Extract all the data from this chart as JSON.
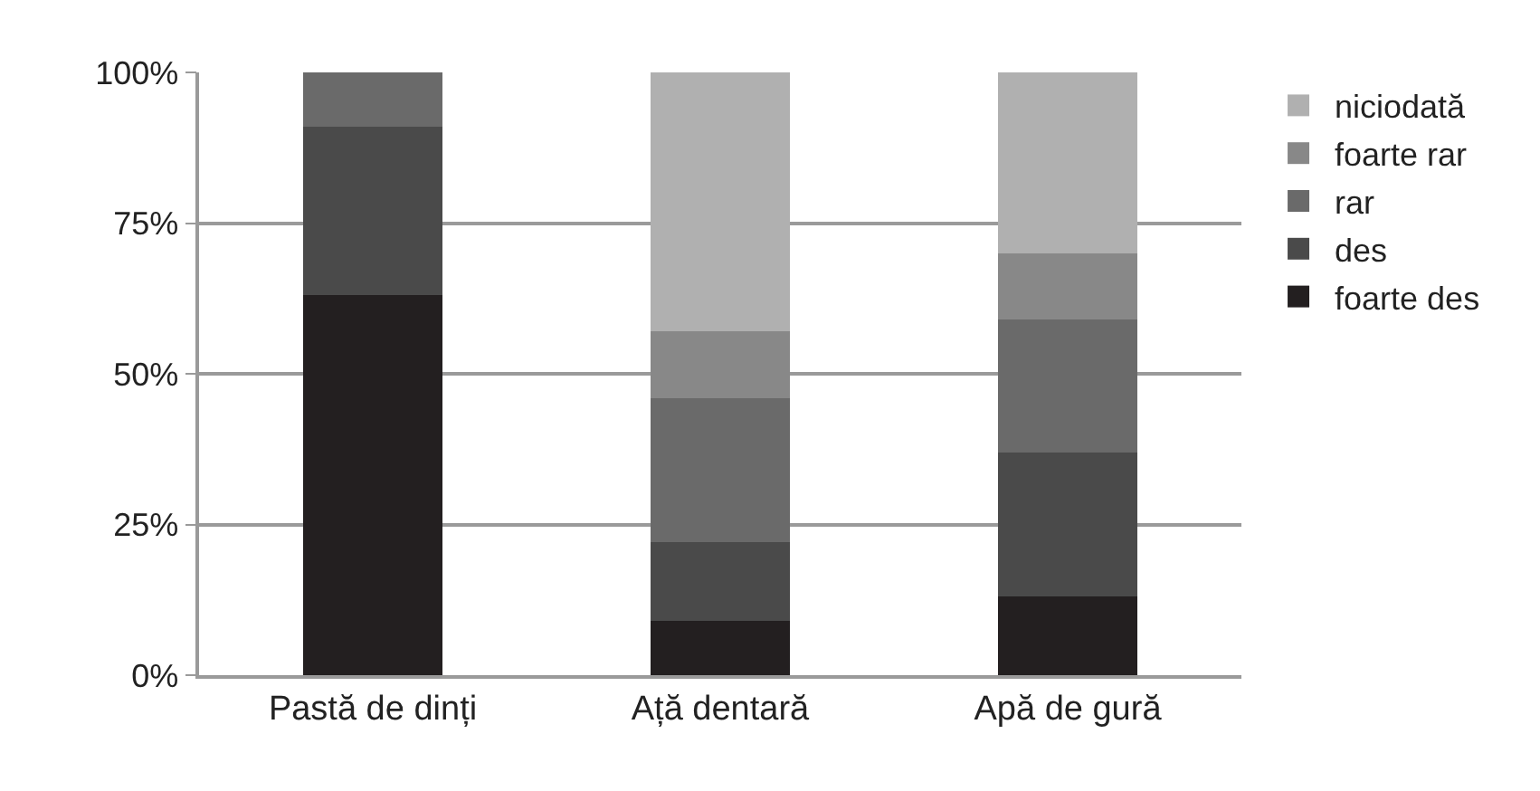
{
  "chart_data": {
    "type": "bar",
    "stacked": true,
    "categories": [
      "Pastă de dinți",
      "Ață dentară",
      "Apă de gură"
    ],
    "series": [
      {
        "name": "foarte des",
        "color": "#231f20",
        "values": [
          63,
          9,
          13
        ]
      },
      {
        "name": "des",
        "color": "#4a4a4a",
        "values": [
          28,
          13,
          24
        ]
      },
      {
        "name": "rar",
        "color": "#6a6a6a",
        "values": [
          9,
          24,
          22
        ]
      },
      {
        "name": "foarte rar",
        "color": "#888888",
        "values": [
          0,
          11,
          11
        ]
      },
      {
        "name": "niciodată",
        "color": "#b0b0b0",
        "values": [
          0,
          43,
          30
        ]
      }
    ],
    "ylim": [
      0,
      100
    ],
    "yticks": [
      {
        "value": 0,
        "label": "0%"
      },
      {
        "value": 25,
        "label": "25%"
      },
      {
        "value": 50,
        "label": "50%"
      },
      {
        "value": 75,
        "label": "75%"
      },
      {
        "value": 100,
        "label": "100%"
      }
    ],
    "grid": "y",
    "legend": "right"
  }
}
